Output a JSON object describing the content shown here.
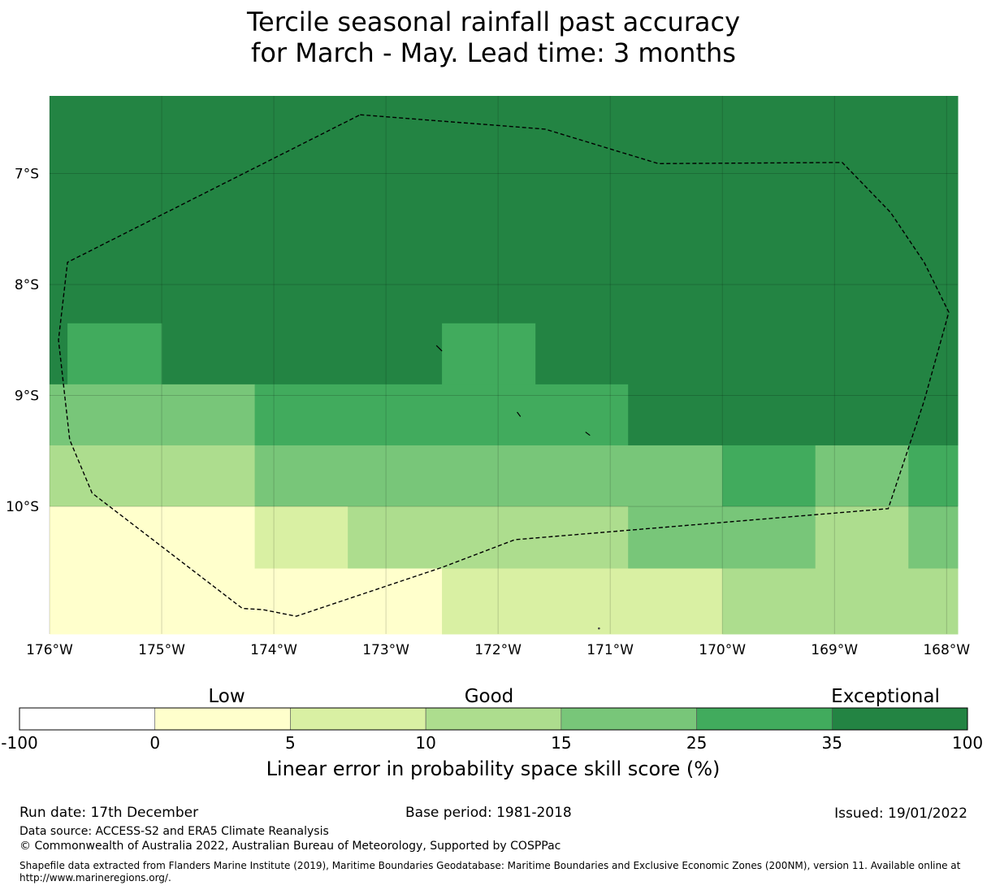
{
  "title": {
    "line1": "Tercile seasonal rainfall past accuracy",
    "line2": "for March - May. Lead time: 3 months"
  },
  "map": {
    "lat_range": [
      -11.15,
      -6.3
    ],
    "lon_range": [
      -176.0,
      -167.9
    ],
    "lat_ticks": [
      {
        "value": -7,
        "label": "7°S"
      },
      {
        "value": -8,
        "label": "8°S"
      },
      {
        "value": -9,
        "label": "9°S"
      },
      {
        "value": -10,
        "label": "10°S"
      }
    ],
    "lon_ticks": [
      {
        "value": -176,
        "label": "176°W"
      },
      {
        "value": -175,
        "label": "175°W"
      },
      {
        "value": -174,
        "label": "174°W"
      },
      {
        "value": -173,
        "label": "173°W"
      },
      {
        "value": -172,
        "label": "172°W"
      },
      {
        "value": -171,
        "label": "171°W"
      },
      {
        "value": -170,
        "label": "170°W"
      },
      {
        "value": -169,
        "label": "169°W"
      },
      {
        "value": -168,
        "label": "168°W"
      }
    ],
    "grid_cells": [
      {
        "lon": [
          -176.0,
          -167.9
        ],
        "lat": [
          -8.9,
          -6.3
        ],
        "class": 6
      },
      {
        "lon": [
          -175.84,
          -175.0
        ],
        "lat": [
          -8.9,
          -8.35
        ],
        "class": 5
      },
      {
        "lon": [
          -172.5,
          -171.67
        ],
        "lat": [
          -8.9,
          -8.35
        ],
        "class": 5
      },
      {
        "lon": [
          -176.0,
          -174.17
        ],
        "lat": [
          -9.45,
          -8.9
        ],
        "class": 4
      },
      {
        "lon": [
          -174.17,
          -170.84
        ],
        "lat": [
          -9.45,
          -8.9
        ],
        "class": 5
      },
      {
        "lon": [
          -170.84,
          -167.9
        ],
        "lat": [
          -9.45,
          -8.9
        ],
        "class": 6
      },
      {
        "lon": [
          -176.0,
          -174.17
        ],
        "lat": [
          -10.0,
          -9.45
        ],
        "class": 3
      },
      {
        "lon": [
          -174.17,
          -170.0
        ],
        "lat": [
          -10.0,
          -9.45
        ],
        "class": 4
      },
      {
        "lon": [
          -170.0,
          -169.17
        ],
        "lat": [
          -10.0,
          -9.45
        ],
        "class": 5
      },
      {
        "lon": [
          -169.17,
          -168.34
        ],
        "lat": [
          -10.0,
          -9.45
        ],
        "class": 4
      },
      {
        "lon": [
          -168.34,
          -167.9
        ],
        "lat": [
          -10.0,
          -9.45
        ],
        "class": 5
      },
      {
        "lon": [
          -176.0,
          -174.17
        ],
        "lat": [
          -11.15,
          -10.0
        ],
        "class": 1
      },
      {
        "lon": [
          -174.17,
          -173.34
        ],
        "lat": [
          -10.56,
          -10.0
        ],
        "class": 2
      },
      {
        "lon": [
          -173.34,
          -170.84
        ],
        "lat": [
          -10.56,
          -10.0
        ],
        "class": 3
      },
      {
        "lon": [
          -170.84,
          -169.17
        ],
        "lat": [
          -10.56,
          -10.0
        ],
        "class": 4
      },
      {
        "lon": [
          -169.17,
          -168.34
        ],
        "lat": [
          -10.56,
          -10.0
        ],
        "class": 3
      },
      {
        "lon": [
          -168.34,
          -167.9
        ],
        "lat": [
          -10.56,
          -10.0
        ],
        "class": 4
      },
      {
        "lon": [
          -174.17,
          -172.5
        ],
        "lat": [
          -11.15,
          -10.56
        ],
        "class": 1
      },
      {
        "lon": [
          -172.5,
          -170.0
        ],
        "lat": [
          -11.15,
          -10.56
        ],
        "class": 2
      },
      {
        "lon": [
          -170.0,
          -167.9
        ],
        "lat": [
          -11.15,
          -10.56
        ],
        "class": 3
      }
    ],
    "eez_boundary": [
      [
        -173.23,
        -6.47
      ],
      [
        -171.58,
        -6.6
      ],
      [
        -170.57,
        -6.91
      ],
      [
        -168.93,
        -6.9
      ],
      [
        -168.5,
        -7.35
      ],
      [
        -168.2,
        -7.8
      ],
      [
        -167.98,
        -8.25
      ],
      [
        -168.2,
        -9.05
      ],
      [
        -168.52,
        -10.02
      ],
      [
        -171.85,
        -10.3
      ],
      [
        -172.5,
        -10.55
      ],
      [
        -173.8,
        -10.99
      ],
      [
        -174.1,
        -10.93
      ],
      [
        -174.28,
        -10.92
      ],
      [
        -175.62,
        -9.88
      ],
      [
        -175.82,
        -9.4
      ],
      [
        -175.92,
        -8.5
      ],
      [
        -175.84,
        -7.8
      ],
      [
        -173.23,
        -6.47
      ]
    ]
  },
  "legend": {
    "category_labels": [
      "Low",
      "Good",
      "Exceptional"
    ],
    "bins": [
      {
        "from": "-100",
        "to": "0",
        "color": "#ffffff"
      },
      {
        "from": "0",
        "to": "5",
        "color": "#ffffcc"
      },
      {
        "from": "5",
        "to": "10",
        "color": "#d9f0a3"
      },
      {
        "from": "10",
        "to": "15",
        "color": "#addd8e"
      },
      {
        "from": "15",
        "to": "25",
        "color": "#78c679"
      },
      {
        "from": "25",
        "to": "35",
        "color": "#41ab5d"
      },
      {
        "from": "35",
        "to": "100",
        "color": "#238443"
      }
    ],
    "tick_labels": [
      "-100",
      "0",
      "5",
      "10",
      "15",
      "25",
      "35",
      "100"
    ],
    "axis_label": "Linear error in probability space skill score (%)"
  },
  "footer": {
    "run_date": "Run date: 17th December",
    "base_period": "Base period: 1981-2018",
    "issued": "Issued: 19/01/2022",
    "data_source": "Data source: ACCESS-S2 and ERA5 Climate Reanalysis",
    "copyright": "© Commonwealth of Australia 2022, Australian Bureau of Meteorology, Supported by COSPPac",
    "shapefile_note": "Shapefile data extracted from Flanders Marine Institute (2019), Maritime Boundaries Geodatabase: Maritime Boundaries and Exclusive Economic Zones (200NM), version 11. Available online at http://www.marineregions.org/."
  }
}
